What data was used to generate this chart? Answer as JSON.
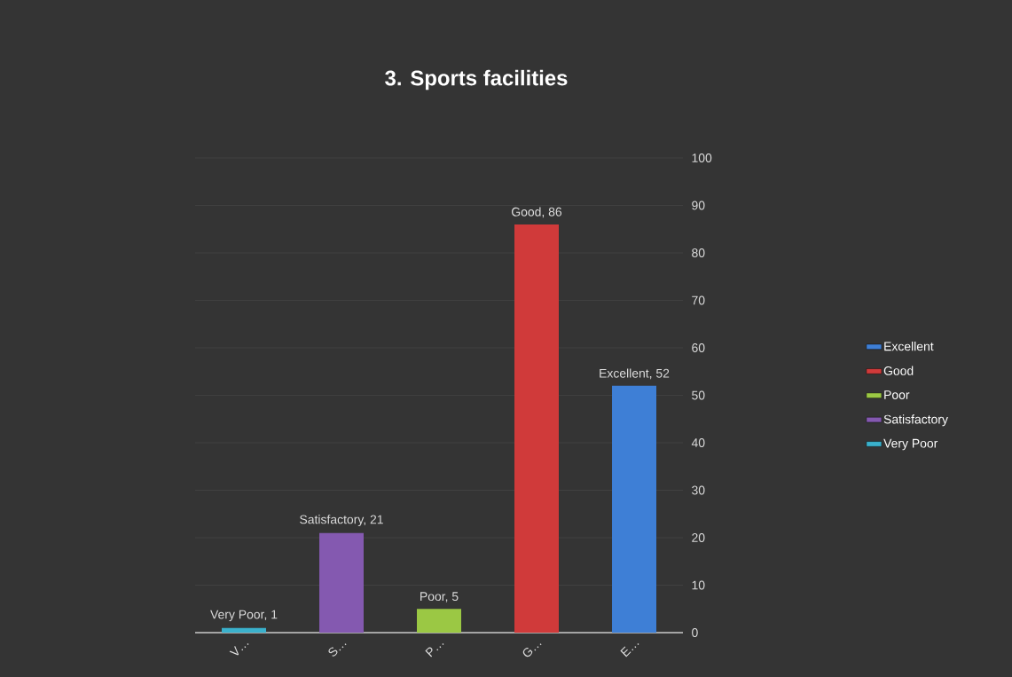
{
  "chart_data": {
    "type": "bar",
    "title": "3. Sports facilities",
    "categories": [
      "V…",
      "S…",
      "P…",
      "G…",
      "E…"
    ],
    "series": [
      {
        "name": "Excellent",
        "color": "#3e7fd6",
        "values": [
          null,
          null,
          null,
          null,
          52
        ],
        "value_labels": [
          null,
          null,
          null,
          null,
          "Excellent, 52"
        ]
      },
      {
        "name": "Good",
        "color": "#d03a3a",
        "values": [
          null,
          null,
          null,
          86,
          null
        ],
        "value_labels": [
          null,
          null,
          null,
          "Good, 86",
          null
        ]
      },
      {
        "name": "Poor",
        "color": "#9bc844",
        "values": [
          null,
          null,
          5,
          null,
          null
        ],
        "value_labels": [
          null,
          null,
          "Poor, 5",
          null,
          null
        ]
      },
      {
        "name": "Satisfactory",
        "color": "#8459b0",
        "values": [
          null,
          21,
          null,
          null,
          null
        ],
        "value_labels": [
          null,
          "Satisfactory, 21",
          null,
          null,
          null
        ]
      },
      {
        "name": "Very Poor",
        "color": "#3ab1cc",
        "values": [
          1,
          null,
          null,
          null,
          null
        ],
        "value_labels": [
          "Very Poor, 1",
          null,
          null,
          null,
          null
        ]
      }
    ],
    "ylim": [
      0,
      100
    ],
    "yticks": [
      0,
      10,
      20,
      30,
      40,
      50,
      60,
      70,
      80,
      90,
      100
    ],
    "grid": "y",
    "legend": "right"
  }
}
